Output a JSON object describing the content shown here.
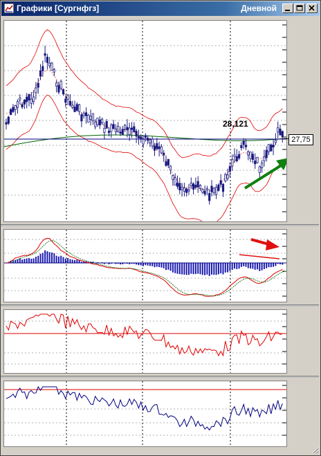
{
  "window": {
    "title": "Графики [Сургнфгз]",
    "period": "Дневной",
    "buttons": {
      "minimize": "minimize",
      "maximize": "maximize",
      "close": "close"
    }
  },
  "price_chart": {
    "last_price_label": "27,75",
    "annotation": "28,121"
  },
  "colors": {
    "candles": "#1b1b80",
    "bands": "#e00000",
    "ma_green": "#006400",
    "ma_blue": "#000080",
    "arrow_green": "#108010",
    "arrow_red": "#e01010"
  }
}
